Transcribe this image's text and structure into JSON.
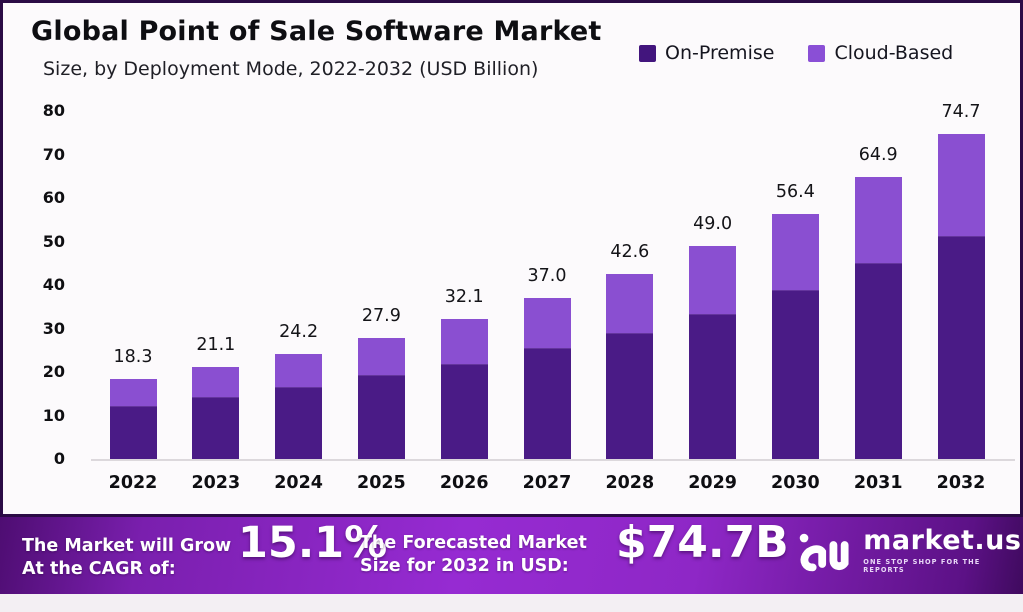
{
  "header": {
    "title": "Global Point of Sale Software Market",
    "subtitle": "Size, by Deployment Mode, 2022-2032 (USD Billion)"
  },
  "legend": {
    "items": [
      {
        "label": "On-Premise",
        "color": "#42157d"
      },
      {
        "label": "Cloud-Based",
        "color": "#8a4fd6"
      }
    ]
  },
  "chart_data": {
    "type": "bar",
    "stacked": true,
    "title": "Global Point of Sale Software Market",
    "subtitle": "Size, by Deployment Mode, 2022-2032 (USD Billion)",
    "categories": [
      "2022",
      "2023",
      "2024",
      "2025",
      "2026",
      "2027",
      "2028",
      "2029",
      "2030",
      "2031",
      "2032"
    ],
    "series": [
      {
        "name": "On-Premise",
        "color": "#4a1b86",
        "values": [
          12.0,
          14.0,
          16.3,
          19.0,
          21.7,
          25.2,
          28.7,
          33.1,
          38.7,
          44.8,
          51.0
        ]
      },
      {
        "name": "Cloud-Based",
        "color": "#8a4fd1",
        "values": [
          6.3,
          7.1,
          7.9,
          8.9,
          10.4,
          11.8,
          13.9,
          15.9,
          17.7,
          20.1,
          23.7
        ]
      }
    ],
    "totals": [
      18.3,
      21.1,
      24.2,
      27.9,
      32.1,
      37.0,
      42.6,
      49.0,
      56.4,
      64.9,
      74.7
    ],
    "total_labels": [
      "18.3",
      "21.1",
      "24.2",
      "27.9",
      "32.1",
      "37.0",
      "42.6",
      "49.0",
      "56.4",
      "64.9",
      "74.7"
    ],
    "xlabel": "",
    "ylabel": "",
    "ylim": [
      0,
      80
    ],
    "yticks": [
      0,
      10,
      20,
      30,
      40,
      50,
      60,
      70,
      80
    ],
    "grid": false,
    "legend_position": "top-right"
  },
  "banner": {
    "cagr_label_line1": "The Market will Grow",
    "cagr_label_line2": "At the CAGR of:",
    "cagr_value": "15.1%",
    "forecast_label_line1": "The Forecasted Market",
    "forecast_label_line2": "Size for 2032 in USD:",
    "forecast_value": "$74.7B",
    "brand": {
      "name": "market.us",
      "tagline": "ONE STOP SHOP FOR THE REPORTS"
    }
  }
}
